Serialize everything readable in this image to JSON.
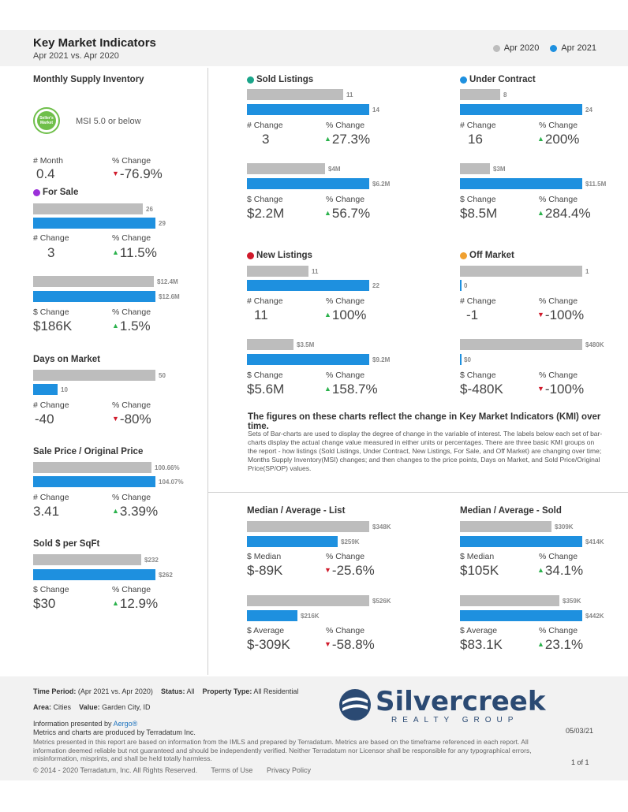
{
  "header": {
    "title": "Key Market Indicators",
    "subtitle": "Apr 2021 vs. Apr 2020",
    "legend": [
      {
        "label": "Apr 2020",
        "color": "#bdbdbd"
      },
      {
        "label": "Apr 2021",
        "color": "#1e90df"
      }
    ]
  },
  "msi": {
    "title": "Monthly Supply Inventory",
    "badge_text": "Seller's Market",
    "note": "MSI 5.0 or below",
    "label1": "# Month",
    "value1": "0.4",
    "label2": "% Change",
    "value2": "-76.9%"
  },
  "for_sale": {
    "title": "For Sale",
    "dot": "#9b30d9",
    "count": {
      "a": "26",
      "b": "29",
      "label1": "# Change",
      "value1": "3",
      "label2": "% Change",
      "value2": "11.5%"
    },
    "dollar": {
      "a": "$12.4M",
      "b": "$12.6M",
      "label1": "$ Change",
      "value1": "$186K",
      "label2": "% Change",
      "value2": "1.5%"
    }
  },
  "dom": {
    "title": "Days on Market",
    "a": "50",
    "b": "10",
    "label1": "# Change",
    "value1": "-40",
    "label2": "% Change",
    "value2": "-80%"
  },
  "spop": {
    "title": "Sale Price / Original Price",
    "a": "100.66%",
    "b": "104.07%",
    "label1": "# Change",
    "value1": "3.41",
    "label2": "% Change",
    "value2": "3.39%"
  },
  "sqft": {
    "title": "Sold $ per SqFt",
    "a": "$232",
    "b": "$262",
    "label1": "$ Change",
    "value1": "$30",
    "label2": "% Change",
    "value2": "12.9%"
  },
  "sold": {
    "title": "Sold Listings",
    "dot": "#1aa58a",
    "count": {
      "a": "11",
      "b": "14",
      "label1": "# Change",
      "value1": "3",
      "label2": "% Change",
      "value2": "27.3%"
    },
    "dollar": {
      "a": "$4M",
      "b": "$6.2M",
      "label1": "$ Change",
      "value1": "$2.2M",
      "label2": "% Change",
      "value2": "56.7%"
    }
  },
  "under": {
    "title": "Under Contract",
    "dot": "#1e90df",
    "count": {
      "a": "8",
      "b": "24",
      "label1": "# Change",
      "value1": "16",
      "label2": "% Change",
      "value2": "200%"
    },
    "dollar": {
      "a": "$3M",
      "b": "$11.5M",
      "label1": "$ Change",
      "value1": "$8.5M",
      "label2": "% Change",
      "value2": "284.4%"
    }
  },
  "newl": {
    "title": "New Listings",
    "dot": "#d01a2b",
    "count": {
      "a": "11",
      "b": "22",
      "label1": "# Change",
      "value1": "11",
      "label2": "% Change",
      "value2": "100%"
    },
    "dollar": {
      "a": "$3.5M",
      "b": "$9.2M",
      "label1": "$ Change",
      "value1": "$5.6M",
      "label2": "% Change",
      "value2": "158.7%"
    }
  },
  "off": {
    "title": "Off Market",
    "dot": "#f0a030",
    "count": {
      "a": "1",
      "b": "0",
      "label1": "# Change",
      "value1": "-1",
      "label2": "% Change",
      "value2": "-100%"
    },
    "dollar": {
      "a": "$480K",
      "b": "$0",
      "label1": "$ Change",
      "value1": "$-480K",
      "label2": "% Change",
      "value2": "-100%"
    }
  },
  "explain": {
    "heading": "The figures on these charts reflect the change in Key Market Indicators (KMI) over time.",
    "body": "Sets of Bar-charts are used to display the degree of change in the variable of interest. The labels below each set of bar-charts display the actual change value measured in either units or percentages. There are three basic KMI groups on the report - how listings (Sold Listings, Under Contract, New Listings, For Sale, and Off Market) are changing over time; Months Supply Inventory(MSI) changes; and then changes to the price points, Days on Market, and Sold Price/Original Price(SP/OP) values."
  },
  "mal": {
    "title": "Median / Average - List",
    "median": {
      "a": "$348K",
      "b": "$259K",
      "label1": "$ Median",
      "value1": "$-89K",
      "label2": "% Change",
      "value2": "-25.6%"
    },
    "average": {
      "a": "$526K",
      "b": "$216K",
      "label1": "$ Average",
      "value1": "$-309K",
      "label2": "% Change",
      "value2": "-58.8%"
    }
  },
  "mas": {
    "title": "Median / Average - Sold",
    "median": {
      "a": "$309K",
      "b": "$414K",
      "label1": "$ Median",
      "value1": "$105K",
      "label2": "% Change",
      "value2": "34.1%"
    },
    "average": {
      "a": "$359K",
      "b": "$442K",
      "label1": "$ Average",
      "value1": "$83.1K",
      "label2": "% Change",
      "value2": "23.1%"
    }
  },
  "footer": {
    "time_label": "Time Period:",
    "time_value": "(Apr 2021 vs. Apr 2020)",
    "status_label": "Status:",
    "status_value": "All",
    "ptype_label": "Property Type:",
    "ptype_value": "All Residential",
    "area_label": "Area:",
    "area_value": "Cities",
    "value_label": "Value:",
    "value_value": "Garden City, ID",
    "presented": "Information presented by",
    "presented_link": "Aergo®",
    "produced": "Metrics and charts are produced by Terradatum Inc.",
    "disclaimer": "Metrics presented in this report are based on information from the IMLS and prepared by Terradatum. Metrics are based on the timeframe referenced in each report. All information deemed reliable but not guaranteed and should be independently verified. Neither Terradatum nor Licensor shall be responsible for any typographical errors, misinformation, misprints, and shall be held totally harmless.",
    "copyright": "© 2014 - 2020 Terradatum, Inc. All Rights Reserved.",
    "terms": "Terms of Use",
    "privacy": "Privacy Policy",
    "date": "05/03/21",
    "page": "1 of 1",
    "logo_word": "Silvercreek",
    "logo_sub": "REALTY GROUP"
  }
}
